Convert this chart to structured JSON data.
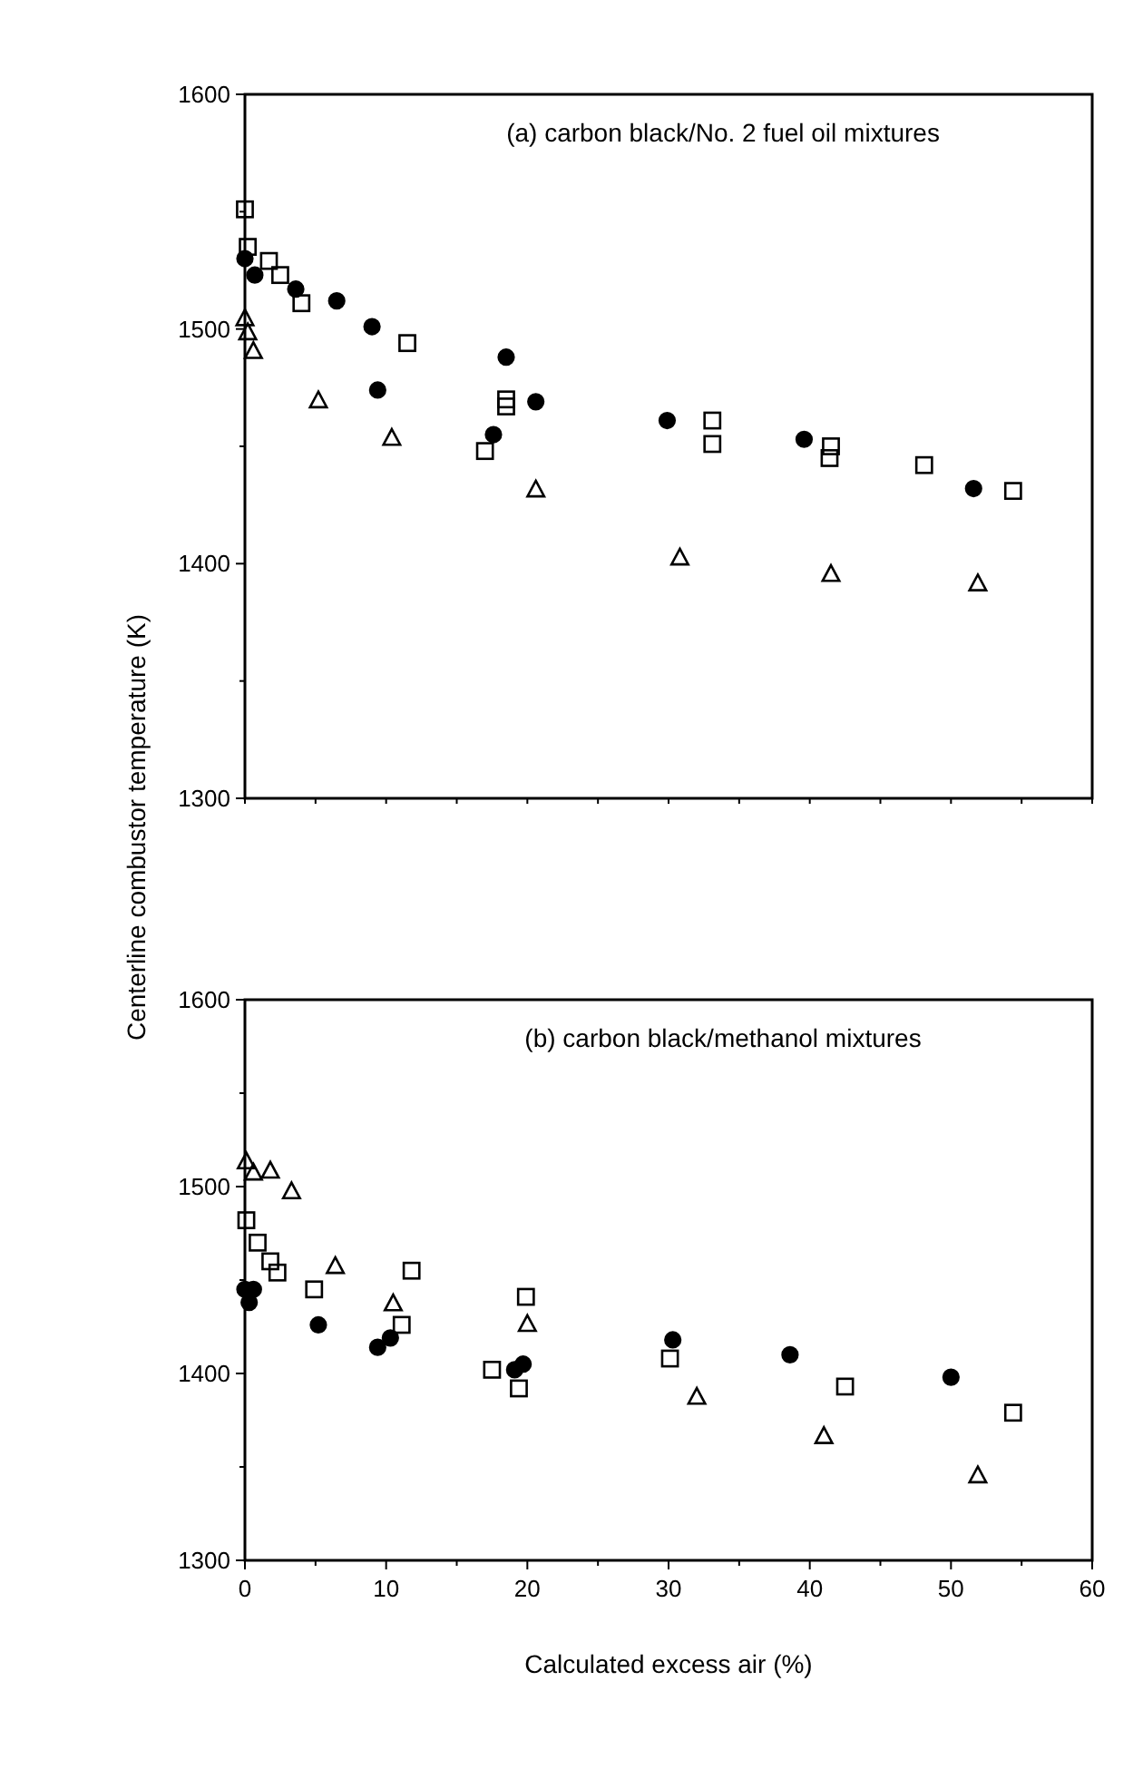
{
  "chart_data": [
    {
      "type": "scatter",
      "title": "(a) carbon black/No. 2 fuel oil mixtures",
      "ylabel": "Centerline combustor temperature (K)",
      "xlim": [
        0,
        60
      ],
      "ylim": [
        1300,
        1600
      ],
      "tick_labels": "y",
      "xticks": [
        {
          "value": 0,
          "label": null
        },
        {
          "value": 5,
          "label": null
        },
        {
          "value": 10,
          "label": null
        },
        {
          "value": 15,
          "label": null
        },
        {
          "value": 20,
          "label": null
        },
        {
          "value": 25,
          "label": null
        },
        {
          "value": 30,
          "label": null
        },
        {
          "value": 35,
          "label": null
        },
        {
          "value": 40,
          "label": null
        },
        {
          "value": 45,
          "label": null
        },
        {
          "value": 50,
          "label": null
        },
        {
          "value": 55,
          "label": null
        },
        {
          "value": 60,
          "label": null
        }
      ],
      "yticks": [
        1300,
        {
          "value": 1350,
          "label": null
        },
        1400,
        {
          "value": 1450,
          "label": null
        },
        1500,
        {
          "value": 1550,
          "label": null
        },
        1600
      ],
      "series": [
        {
          "color": "#000000",
          "marker": "circle",
          "x": [
            0,
            0.7,
            3.6,
            6.5,
            9.0,
            9.4,
            18.5,
            17.6,
            20.6,
            29.9,
            39.6,
            51.6
          ],
          "values": [
            1530,
            1523,
            1517,
            1512,
            1501,
            1474,
            1488,
            1455,
            1469,
            1461,
            1453,
            1432
          ]
        },
        {
          "color": "#000000",
          "marker": "square",
          "x": [
            0,
            0.2,
            1.7,
            2.5,
            4.0,
            11.5,
            18.5,
            18.5,
            17.0,
            33.1,
            33.1,
            41.5,
            41.4,
            48.1,
            54.4
          ],
          "values": [
            1551,
            1535,
            1529,
            1523,
            1511,
            1494,
            1470,
            1467,
            1448,
            1461,
            1451,
            1450,
            1445,
            1442,
            1431
          ]
        },
        {
          "color": "#000000",
          "marker": "triangle",
          "x": [
            0,
            0.2,
            0.6,
            5.2,
            10.4,
            20.6,
            30.8,
            41.5,
            51.9
          ],
          "values": [
            1505,
            1499,
            1491,
            1470,
            1454,
            1432,
            1403,
            1396,
            1392
          ]
        }
      ]
    },
    {
      "type": "scatter",
      "title": "(b) carbon black/methanol mixtures",
      "xlabel": "Calculated excess air (%)",
      "xlim": [
        0,
        60
      ],
      "ylim": [
        1300,
        1600
      ],
      "xticks": [
        0,
        {
          "value": 5,
          "label": null
        },
        10,
        {
          "value": 15,
          "label": null
        },
        20,
        {
          "value": 25,
          "label": null
        },
        30,
        {
          "value": 35,
          "label": null
        },
        40,
        {
          "value": 45,
          "label": null
        },
        50,
        {
          "value": 55,
          "label": null
        },
        60
      ],
      "yticks": [
        1300,
        {
          "value": 1350,
          "label": null
        },
        1400,
        {
          "value": 1450,
          "label": null
        },
        1500,
        {
          "value": 1550,
          "label": null
        },
        1600
      ],
      "series": [
        {
          "color": "#000000",
          "marker": "circle",
          "x": [
            0,
            0.6,
            0.3,
            5.2,
            9.4,
            10.3,
            19.1,
            19.7,
            30.3,
            38.6,
            50.0
          ],
          "values": [
            1445,
            1445,
            1438,
            1426,
            1414,
            1419,
            1402,
            1405,
            1418,
            1410,
            1398
          ]
        },
        {
          "color": "#000000",
          "marker": "square",
          "x": [
            0.1,
            0.9,
            1.8,
            2.3,
            4.9,
            11.8,
            11.1,
            19.9,
            17.5,
            19.4,
            30.1,
            42.5,
            54.4
          ],
          "values": [
            1482,
            1470,
            1460,
            1454,
            1445,
            1455,
            1426,
            1441,
            1402,
            1392,
            1408,
            1393,
            1379
          ]
        },
        {
          "color": "#000000",
          "marker": "triangle",
          "x": [
            0.1,
            0.6,
            1.8,
            3.3,
            6.4,
            10.5,
            20.0,
            32.0,
            41.0,
            51.9
          ],
          "values": [
            1514,
            1508,
            1509,
            1498,
            1458,
            1438,
            1427,
            1388,
            1367,
            1346
          ]
        }
      ]
    }
  ]
}
